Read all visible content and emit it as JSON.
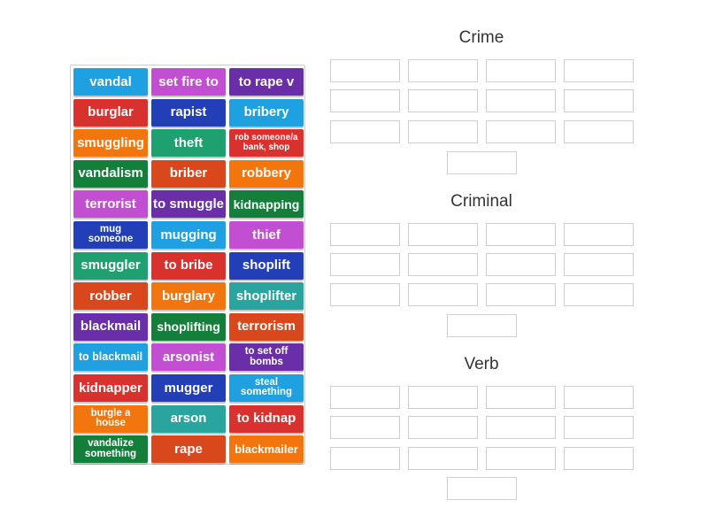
{
  "tiles": [
    {
      "label": "vandal",
      "color": "#1fa0e0"
    },
    {
      "label": "set fire to",
      "color": "#c24fd1"
    },
    {
      "label": "to rape v",
      "color": "#6a2fa8"
    },
    {
      "label": "burglar",
      "color": "#d9322e"
    },
    {
      "label": "rapist",
      "color": "#233fb8"
    },
    {
      "label": "bribery",
      "color": "#1fa0e0"
    },
    {
      "label": "smuggling",
      "color": "#f2760d"
    },
    {
      "label": "theft",
      "color": "#1fa070"
    },
    {
      "label": "rob someone/a bank, shop",
      "color": "#d9322e"
    },
    {
      "label": "vandalism",
      "color": "#137f3a"
    },
    {
      "label": "briber",
      "color": "#d9471c"
    },
    {
      "label": "robbery",
      "color": "#f2760d"
    },
    {
      "label": "terrorist",
      "color": "#c24fd1"
    },
    {
      "label": "to smuggle",
      "color": "#6a2fa8"
    },
    {
      "label": "kidnapping",
      "color": "#137f3a"
    },
    {
      "label": "mug someone",
      "color": "#233fb8"
    },
    {
      "label": "mugging",
      "color": "#1fa0e0"
    },
    {
      "label": "thief",
      "color": "#c24fd1"
    },
    {
      "label": "smuggler",
      "color": "#1fa070"
    },
    {
      "label": "to bribe",
      "color": "#d9322e"
    },
    {
      "label": "shoplift",
      "color": "#233fb8"
    },
    {
      "label": "robber",
      "color": "#d9471c"
    },
    {
      "label": "burglary",
      "color": "#f2760d"
    },
    {
      "label": "shoplifter",
      "color": "#2aa49f"
    },
    {
      "label": "blackmail",
      "color": "#6a2fa8"
    },
    {
      "label": "shoplifting",
      "color": "#137f3a"
    },
    {
      "label": "terrorism",
      "color": "#d9471c"
    },
    {
      "label": "to blackmail",
      "color": "#1fa0e0"
    },
    {
      "label": "arsonist",
      "color": "#c24fd1"
    },
    {
      "label": "to set off bombs",
      "color": "#6a2fa8"
    },
    {
      "label": "kidnapper",
      "color": "#d9322e"
    },
    {
      "label": "mugger",
      "color": "#233fb8"
    },
    {
      "label": "steal something",
      "color": "#1fa0e0"
    },
    {
      "label": "burgle a house",
      "color": "#f2760d"
    },
    {
      "label": "arson",
      "color": "#2aa49f"
    },
    {
      "label": "to kidnap",
      "color": "#d9322e"
    },
    {
      "label": "vandalize something",
      "color": "#137f3a"
    },
    {
      "label": "rape",
      "color": "#d9471c"
    },
    {
      "label": "blackmailer",
      "color": "#f2760d"
    }
  ],
  "groups": [
    {
      "title": "Crime"
    },
    {
      "title": "Criminal"
    },
    {
      "title": "Verb"
    }
  ]
}
